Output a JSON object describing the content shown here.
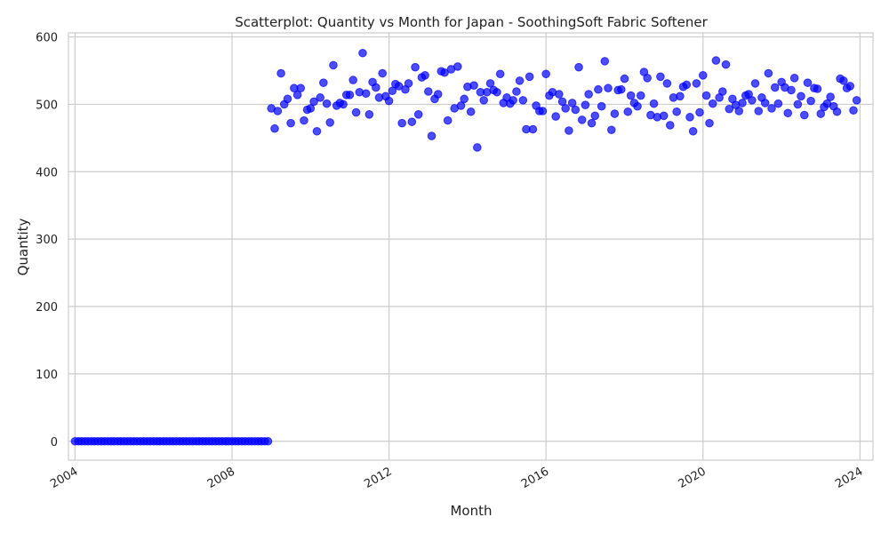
{
  "chart_data": {
    "type": "scatter",
    "title": "Scatterplot: Quantity vs Month for Japan - SoothingSoft Fabric Softener",
    "xlabel": "Month",
    "ylabel": "Quantity",
    "xlim": [
      "2003-11-01",
      "2024-05-01"
    ],
    "ylim": [
      -28,
      606
    ],
    "grid": true,
    "point_color": "#0000ff",
    "x_ticks": [
      "2004-01-01",
      "2008-01-01",
      "2012-01-01",
      "2016-01-01",
      "2020-01-01",
      "2024-01-01"
    ],
    "x_tick_labels": [
      "2004",
      "2008",
      "2012",
      "2016",
      "2020",
      "2024"
    ],
    "y_ticks": [
      0,
      100,
      200,
      300,
      400,
      500,
      600
    ],
    "y_tick_labels": [
      "0",
      "100",
      "200",
      "300",
      "400",
      "500",
      "600"
    ],
    "series": [
      {
        "x": [
          "2004-01",
          "2004-02",
          "2004-03",
          "2004-04",
          "2004-05",
          "2004-06",
          "2004-07",
          "2004-08",
          "2004-09",
          "2004-10",
          "2004-11",
          "2004-12",
          "2005-01",
          "2005-02",
          "2005-03",
          "2005-04",
          "2005-05",
          "2005-06",
          "2005-07",
          "2005-08",
          "2005-09",
          "2005-10",
          "2005-11",
          "2005-12",
          "2006-01",
          "2006-02",
          "2006-03",
          "2006-04",
          "2006-05",
          "2006-06",
          "2006-07",
          "2006-08",
          "2006-09",
          "2006-10",
          "2006-11",
          "2006-12",
          "2007-01",
          "2007-02",
          "2007-03",
          "2007-04",
          "2007-05",
          "2007-06",
          "2007-07",
          "2007-08",
          "2007-09",
          "2007-10",
          "2007-11",
          "2007-12",
          "2008-01",
          "2008-02",
          "2008-03",
          "2008-04",
          "2008-05",
          "2008-06",
          "2008-07",
          "2008-08",
          "2008-09",
          "2008-10",
          "2008-11",
          "2008-12",
          "2009-01",
          "2009-02",
          "2009-03",
          "2009-04",
          "2009-05",
          "2009-06",
          "2009-07",
          "2009-08",
          "2009-09",
          "2009-10",
          "2009-11",
          "2009-12",
          "2010-01",
          "2010-02",
          "2010-03",
          "2010-04",
          "2010-05",
          "2010-06",
          "2010-07",
          "2010-08",
          "2010-09",
          "2010-10",
          "2010-11",
          "2010-12",
          "2011-01",
          "2011-02",
          "2011-03",
          "2011-04",
          "2011-05",
          "2011-06",
          "2011-07",
          "2011-08",
          "2011-09",
          "2011-10",
          "2011-11",
          "2011-12",
          "2012-01",
          "2012-02",
          "2012-03",
          "2012-04",
          "2012-05",
          "2012-06",
          "2012-07",
          "2012-08",
          "2012-09",
          "2012-10",
          "2012-11",
          "2012-12",
          "2013-01",
          "2013-02",
          "2013-03",
          "2013-04",
          "2013-05",
          "2013-06",
          "2013-07",
          "2013-08",
          "2013-09",
          "2013-10",
          "2013-11",
          "2013-12",
          "2014-01",
          "2014-02",
          "2014-03",
          "2014-04",
          "2014-05",
          "2014-06",
          "2014-07",
          "2014-08",
          "2014-09",
          "2014-10",
          "2014-11",
          "2014-12",
          "2015-01",
          "2015-02",
          "2015-03",
          "2015-04",
          "2015-05",
          "2015-06",
          "2015-07",
          "2015-08",
          "2015-09",
          "2015-10",
          "2015-11",
          "2015-12",
          "2016-01",
          "2016-02",
          "2016-03",
          "2016-04",
          "2016-05",
          "2016-06",
          "2016-07",
          "2016-08",
          "2016-09",
          "2016-10",
          "2016-11",
          "2016-12",
          "2017-01",
          "2017-02",
          "2017-03",
          "2017-04",
          "2017-05",
          "2017-06",
          "2017-07",
          "2017-08",
          "2017-09",
          "2017-10",
          "2017-11",
          "2017-12",
          "2018-01",
          "2018-02",
          "2018-03",
          "2018-04",
          "2018-05",
          "2018-06",
          "2018-07",
          "2018-08",
          "2018-09",
          "2018-10",
          "2018-11",
          "2018-12",
          "2019-01",
          "2019-02",
          "2019-03",
          "2019-04",
          "2019-05",
          "2019-06",
          "2019-07",
          "2019-08",
          "2019-09",
          "2019-10",
          "2019-11",
          "2019-12",
          "2020-01",
          "2020-02",
          "2020-03",
          "2020-04",
          "2020-05",
          "2020-06",
          "2020-07",
          "2020-08",
          "2020-09",
          "2020-10",
          "2020-11",
          "2020-12",
          "2021-01",
          "2021-02",
          "2021-03",
          "2021-04",
          "2021-05",
          "2021-06",
          "2021-07",
          "2021-08",
          "2021-09",
          "2021-10",
          "2021-11",
          "2021-12",
          "2022-01",
          "2022-02",
          "2022-03",
          "2022-04",
          "2022-05",
          "2022-06",
          "2022-07",
          "2022-08",
          "2022-09",
          "2022-10",
          "2022-11",
          "2022-12",
          "2023-01",
          "2023-02",
          "2023-03",
          "2023-04",
          "2023-05",
          "2023-06",
          "2023-07",
          "2023-08",
          "2023-09",
          "2023-10",
          "2023-11",
          "2023-12"
        ],
        "y": [
          0,
          0,
          0,
          0,
          0,
          0,
          0,
          0,
          0,
          0,
          0,
          0,
          0,
          0,
          0,
          0,
          0,
          0,
          0,
          0,
          0,
          0,
          0,
          0,
          0,
          0,
          0,
          0,
          0,
          0,
          0,
          0,
          0,
          0,
          0,
          0,
          0,
          0,
          0,
          0,
          0,
          0,
          0,
          0,
          0,
          0,
          0,
          0,
          0,
          0,
          0,
          0,
          0,
          0,
          0,
          0,
          0,
          0,
          0,
          0,
          494,
          464,
          490,
          546,
          500,
          508,
          472,
          524,
          514,
          524,
          476,
          492,
          494,
          504,
          460,
          510,
          532,
          501,
          473,
          558,
          498,
          502,
          500,
          514,
          514,
          536,
          488,
          518,
          576,
          516,
          485,
          533,
          525,
          510,
          546,
          512,
          505,
          520,
          530,
          527,
          472,
          522,
          531,
          474,
          555,
          485,
          540,
          543,
          519,
          453,
          508,
          515,
          549,
          547,
          476,
          552,
          494,
          556,
          498,
          508,
          526,
          489,
          528,
          436,
          518,
          506,
          518,
          531,
          521,
          518,
          545,
          502,
          510,
          501,
          506,
          519,
          535,
          506,
          463,
          541,
          463,
          498,
          490,
          490,
          545,
          513,
          518,
          482,
          515,
          504,
          494,
          461,
          502,
          492,
          555,
          477,
          499,
          515,
          472,
          483,
          522,
          497,
          564,
          524,
          462,
          486,
          521,
          522,
          538,
          489,
          513,
          502,
          497,
          513,
          548,
          539,
          484,
          501,
          481,
          541,
          483,
          531,
          469,
          510,
          489,
          512,
          526,
          529,
          481,
          460,
          531,
          488,
          543,
          513,
          472,
          501,
          565,
          510,
          519,
          559,
          493,
          508,
          499,
          490,
          502,
          513,
          515,
          506,
          531,
          490,
          510,
          502,
          546,
          494,
          525,
          501,
          533,
          525,
          487,
          521,
          539,
          500,
          512,
          484,
          532,
          505,
          524,
          523,
          486,
          496,
          501,
          511,
          497,
          489,
          538,
          535,
          524,
          527,
          491,
          506
        ]
      }
    ]
  }
}
